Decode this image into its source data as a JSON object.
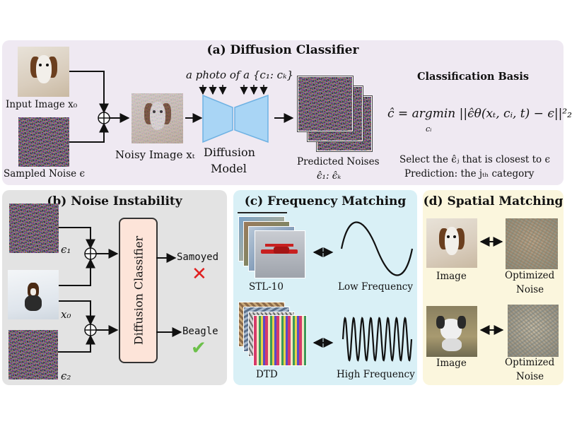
{
  "panel_a": {
    "title": "(a) Diffusion Classifier",
    "input_image_label": "Input Image x₀",
    "sampled_noise_label": "Sampled Noise ϵ",
    "noisy_image_label": "Noisy Image xₜ",
    "prompt_text": "a photo of a {c₁: cₖ}",
    "model_label_line1": "Diffusion",
    "model_label_line2": "Model",
    "predicted_label_line1": "Predicted Noises",
    "predicted_label_line2": "ϵ̂₁: ϵ̂ₖ",
    "basis_title": "Classification Basis",
    "formula": "ĉ = argmin ||ϵ̂θ(xₜ, cᵢ, t) − ϵ||²₂",
    "formula_sub": "cᵢ",
    "select_text": "Select the ϵ̂ⱼ that is closest to ϵ",
    "prediction_text": "Prediction: the jₜₕ category"
  },
  "panel_b": {
    "title": "(b) Noise Instability",
    "eps1_label": "ϵ₁",
    "x0_label": "x₀",
    "eps2_label": "ϵ₂",
    "classifier_label": "Diffusion Classifier",
    "output_top": "Samoyed",
    "output_bottom": "Beagle",
    "wrong_icon": "✕",
    "right_icon": "✔"
  },
  "panel_c": {
    "title": "(c) Frequency Matching",
    "dataset_top": "STL-10",
    "freq_top": "Low Frequency",
    "dataset_bottom": "DTD",
    "freq_bottom": "High Frequency"
  },
  "panel_d": {
    "title": "(d) Spatial Matching",
    "image_label_1": "Image",
    "noise_label_1a": "Optimized",
    "noise_label_1b": "Noise",
    "image_label_2": "Image",
    "noise_label_2a": "Optimized",
    "noise_label_2b": "Noise"
  },
  "colors": {
    "panel_a_bg": "#efe9f2",
    "panel_b_bg": "#e3e3e3",
    "panel_c_bg": "#d9f0f6",
    "panel_d_bg": "#fbf6dd",
    "classifier_box": "#fde4d9",
    "model_shape": "#a9d5f5",
    "wrong": "#e02020",
    "right": "#6cc04a"
  }
}
